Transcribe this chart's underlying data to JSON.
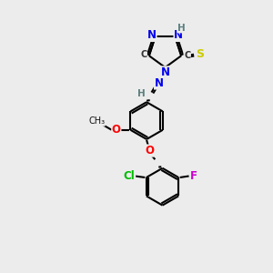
{
  "bg_color": "#ececec",
  "bond_color": "#000000",
  "bond_width": 1.5,
  "atom_colors": {
    "N": "#0000ee",
    "S": "#cccc00",
    "O": "#ff0000",
    "Cl": "#00bb00",
    "F": "#cc00cc",
    "H": "#5c8080",
    "C": "#000000"
  }
}
